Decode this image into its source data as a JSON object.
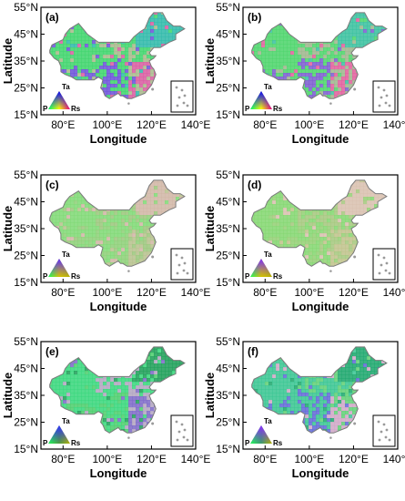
{
  "figure": {
    "panels": [
      {
        "label": "(a)",
        "legend_colors": [
          "#e6007e",
          "#0000ff",
          "#00ff66",
          "#ffff00"
        ],
        "map_colors": [
          "#3cd36a",
          "#6a4fd8",
          "#d85aa0",
          "#a7b98a",
          "#2db9a8"
        ]
      },
      {
        "label": "(b)",
        "legend_colors": [
          "#e6007e",
          "#0000ff",
          "#00ff66",
          "#ffff00"
        ],
        "map_colors": [
          "#4ad468",
          "#7a5bd0",
          "#e05d9b",
          "#9eb58c",
          "#37c09e"
        ]
      },
      {
        "label": "(c)",
        "legend_colors": [
          "#b7b300",
          "#5a2cff",
          "#1eff55",
          "#d6c400"
        ],
        "map_colors": [
          "#7ed873",
          "#8ccf75",
          "#b6c18c",
          "#9ac67a",
          "#d0b5a4"
        ]
      },
      {
        "label": "(d)",
        "legend_colors": [
          "#b7b300",
          "#7a2cff",
          "#1eff55",
          "#d6c400"
        ],
        "map_colors": [
          "#82d66f",
          "#93cf73",
          "#c0c28b",
          "#a4c77c",
          "#d8bfae"
        ]
      },
      {
        "label": "(e)",
        "legend_colors": [
          "#b7b300",
          "#3030ff",
          "#1eff55",
          "#4f9e3e"
        ],
        "map_colors": [
          "#36d67a",
          "#4acd6b",
          "#7b67c7",
          "#b1a4c0",
          "#1b9e56"
        ]
      },
      {
        "label": "(f)",
        "legend_colors": [
          "#b7b300",
          "#8b2cff",
          "#1eff55",
          "#3a9d6a"
        ],
        "map_colors": [
          "#37c490",
          "#5f67d6",
          "#cfa7c6",
          "#5ecf74",
          "#1aa66b"
        ]
      }
    ]
  },
  "chart_data": {
    "type": "heatmap",
    "panels": [
      "(a)",
      "(b)",
      "(c)",
      "(d)",
      "(e)",
      "(f)"
    ],
    "xlabel": "Longitude",
    "ylabel": "Latitude",
    "xticks": [
      "80°E",
      "100°E",
      "120°E",
      "140°E"
    ],
    "yticks": [
      "55°N",
      "45°N",
      "35°N",
      "25°N",
      "15°N"
    ],
    "xlim": [
      70,
      140
    ],
    "ylim": [
      15,
      55
    ],
    "legend_vertices": {
      "top": "Ta",
      "left": "P",
      "right": "Rs"
    }
  }
}
